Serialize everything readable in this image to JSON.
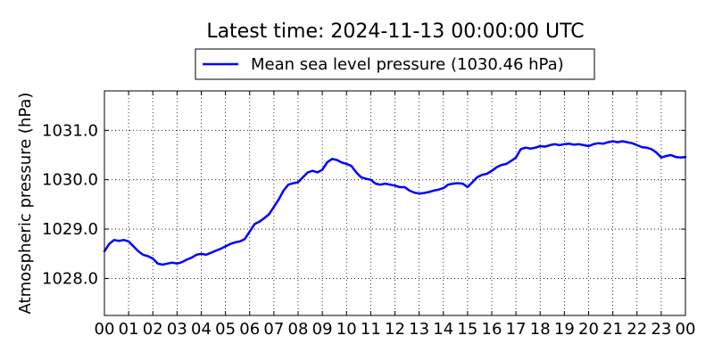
{
  "chart_data": {
    "type": "line",
    "title": "Latest time: 2024-11-13 00:00:00 UTC",
    "xlabel": "",
    "ylabel": "Atmospheric pressure (hPa)",
    "xlim": [
      0,
      24
    ],
    "ylim": [
      1027.25,
      1031.8
    ],
    "x_ticks": [
      0,
      1,
      2,
      3,
      4,
      5,
      6,
      7,
      8,
      9,
      10,
      11,
      12,
      13,
      14,
      15,
      16,
      17,
      18,
      19,
      20,
      21,
      22,
      23,
      24
    ],
    "x_tick_labels": [
      "00",
      "01",
      "02",
      "03",
      "04",
      "05",
      "06",
      "07",
      "08",
      "09",
      "10",
      "11",
      "12",
      "13",
      "14",
      "15",
      "16",
      "17",
      "18",
      "19",
      "20",
      "21",
      "22",
      "23",
      "00"
    ],
    "y_ticks": [
      1028.0,
      1029.0,
      1030.0,
      1031.0
    ],
    "y_tick_labels": [
      "1028.0",
      "1029.0",
      "1030.0",
      "1031.0"
    ],
    "grid": true,
    "legend_position": "top-center",
    "series": [
      {
        "name": "Mean sea level pressure (1030.46 hPa)",
        "color": "#0000ff",
        "x": [
          0,
          0.2,
          0.4,
          0.6,
          0.8,
          1.0,
          1.2,
          1.4,
          1.6,
          1.8,
          2.0,
          2.2,
          2.4,
          2.6,
          2.8,
          3.0,
          3.2,
          3.4,
          3.6,
          3.8,
          4.0,
          4.2,
          4.4,
          4.6,
          4.8,
          5.0,
          5.2,
          5.4,
          5.6,
          5.8,
          6.0,
          6.2,
          6.4,
          6.6,
          6.8,
          7.0,
          7.2,
          7.4,
          7.6,
          7.8,
          8.0,
          8.2,
          8.4,
          8.6,
          8.8,
          9.0,
          9.2,
          9.4,
          9.6,
          9.8,
          10.0,
          10.2,
          10.4,
          10.6,
          10.8,
          11.0,
          11.2,
          11.4,
          11.6,
          11.8,
          12.0,
          12.2,
          12.4,
          12.6,
          12.8,
          13.0,
          13.2,
          13.4,
          13.6,
          13.8,
          14.0,
          14.2,
          14.4,
          14.6,
          14.8,
          15.0,
          15.2,
          15.4,
          15.6,
          15.8,
          16.0,
          16.2,
          16.4,
          16.6,
          16.8,
          17.0,
          17.2,
          17.4,
          17.6,
          17.8,
          18.0,
          18.2,
          18.4,
          18.6,
          18.8,
          19.0,
          19.2,
          19.4,
          19.6,
          19.8,
          20.0,
          20.2,
          20.4,
          20.6,
          20.8,
          21.0,
          21.2,
          21.4,
          21.6,
          21.8,
          22.0,
          22.2,
          22.4,
          22.6,
          22.8,
          23.0,
          23.2,
          23.4,
          23.6,
          23.8,
          24.0
        ],
        "values": [
          1028.55,
          1028.7,
          1028.78,
          1028.76,
          1028.78,
          1028.75,
          1028.65,
          1028.55,
          1028.48,
          1028.45,
          1028.4,
          1028.3,
          1028.28,
          1028.3,
          1028.32,
          1028.3,
          1028.33,
          1028.38,
          1028.42,
          1028.48,
          1028.5,
          1028.48,
          1028.52,
          1028.56,
          1028.6,
          1028.65,
          1028.7,
          1028.73,
          1028.75,
          1028.8,
          1028.95,
          1029.1,
          1029.15,
          1029.22,
          1029.3,
          1029.45,
          1029.6,
          1029.78,
          1029.9,
          1029.93,
          1029.95,
          1030.05,
          1030.15,
          1030.18,
          1030.15,
          1030.2,
          1030.35,
          1030.42,
          1030.4,
          1030.35,
          1030.32,
          1030.28,
          1030.15,
          1030.05,
          1030.02,
          1030.0,
          1029.92,
          1029.9,
          1029.92,
          1029.9,
          1029.88,
          1029.85,
          1029.85,
          1029.78,
          1029.74,
          1029.72,
          1029.73,
          1029.75,
          1029.78,
          1029.8,
          1029.83,
          1029.9,
          1029.92,
          1029.93,
          1029.92,
          1029.85,
          1029.95,
          1030.05,
          1030.1,
          1030.12,
          1030.18,
          1030.25,
          1030.3,
          1030.32,
          1030.38,
          1030.45,
          1030.62,
          1030.65,
          1030.63,
          1030.65,
          1030.68,
          1030.67,
          1030.7,
          1030.72,
          1030.7,
          1030.72,
          1030.73,
          1030.71,
          1030.72,
          1030.7,
          1030.68,
          1030.72,
          1030.74,
          1030.73,
          1030.76,
          1030.78,
          1030.76,
          1030.78,
          1030.76,
          1030.74,
          1030.7,
          1030.66,
          1030.65,
          1030.62,
          1030.55,
          1030.45,
          1030.48,
          1030.5,
          1030.46,
          1030.45,
          1030.46
        ]
      }
    ]
  }
}
